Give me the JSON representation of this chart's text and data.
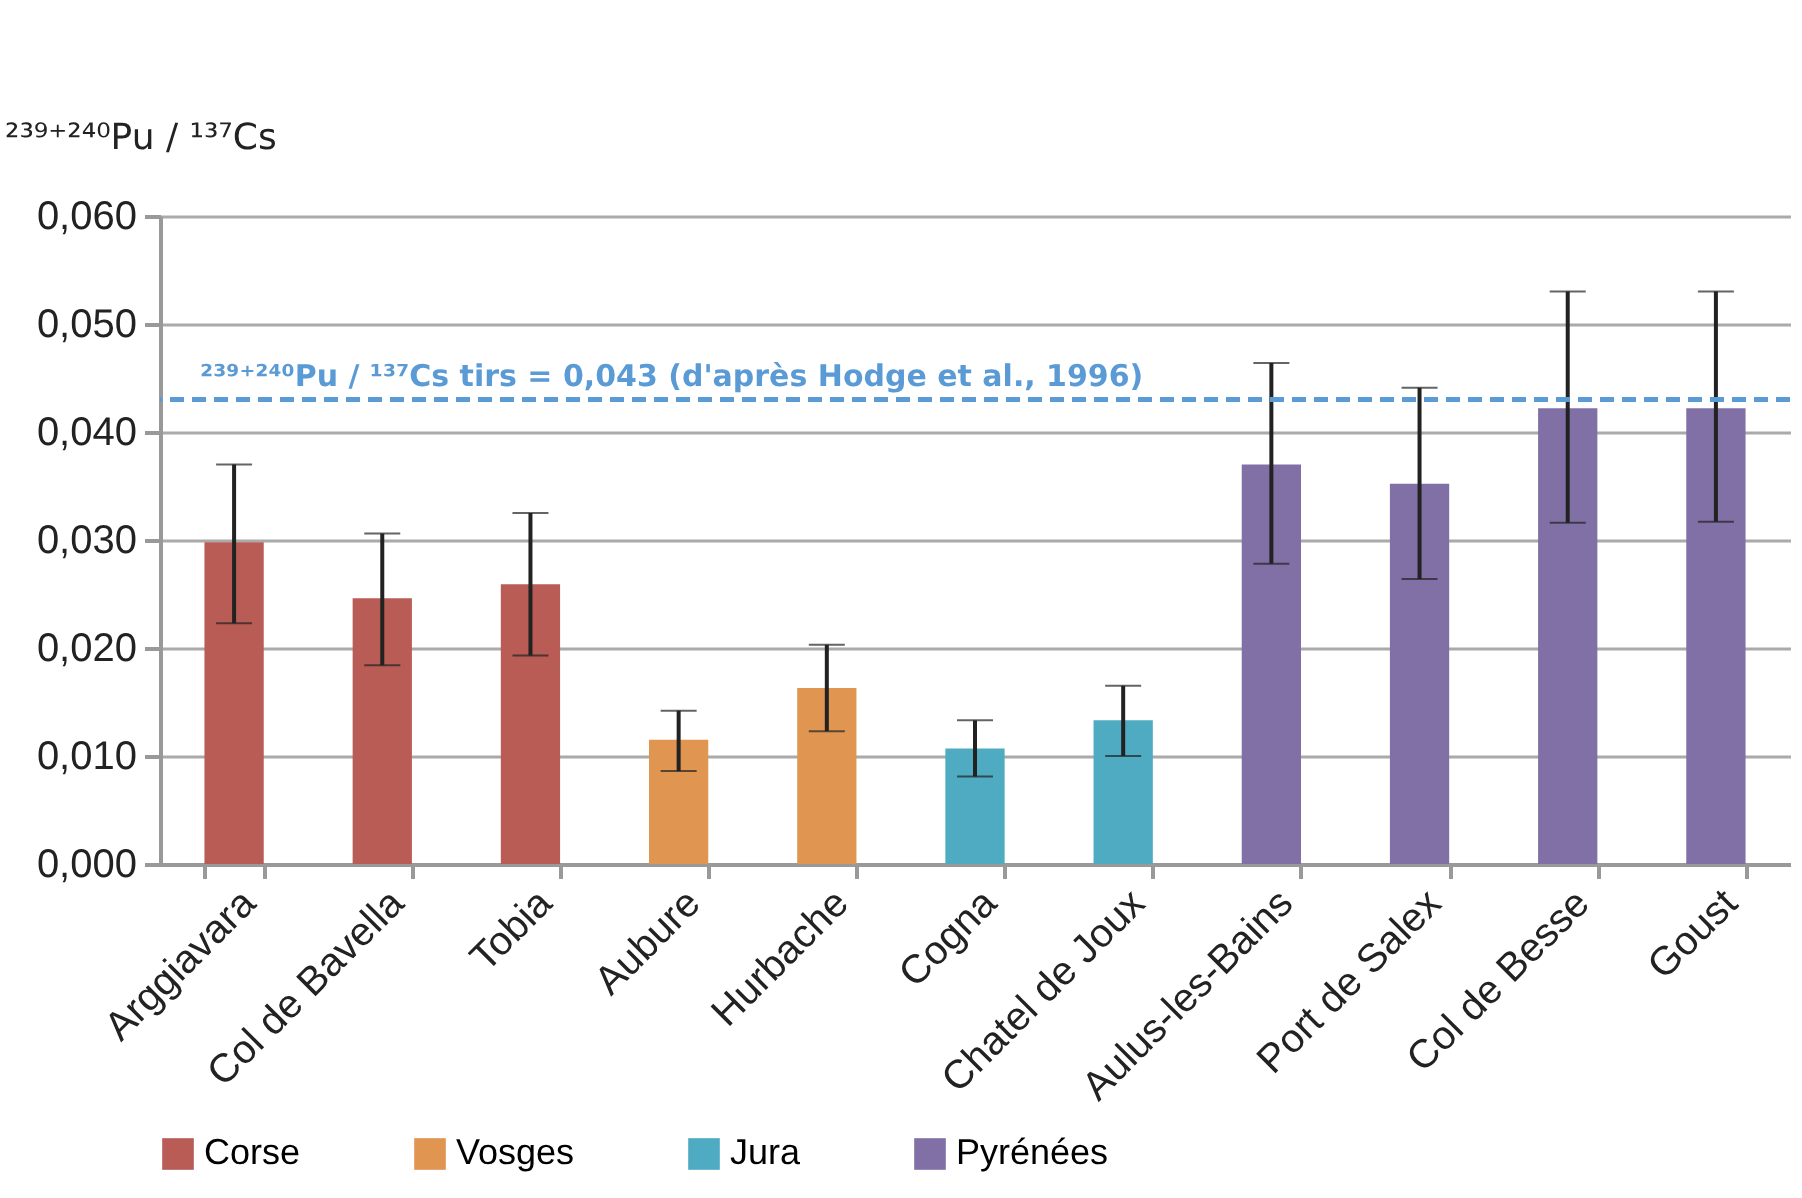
{
  "chart_data": {
    "type": "bar",
    "ylabel": "²³⁹⁺²⁴⁰Pu / ¹³⁷Cs",
    "categories": [
      "Arggiavara",
      "Col de Bavella",
      "Tobia",
      "Aubure",
      "Hurbache",
      "Cogna",
      "Chatel de Joux",
      "Aulus-les-Bains",
      "Port de Salex",
      "Col de Besse",
      "Goust"
    ],
    "series": [
      {
        "name": "Corse",
        "color": "#b85c55",
        "values": [
          0.0298,
          0.0246,
          0.0259,
          null,
          null,
          null,
          null,
          null,
          null,
          null,
          null
        ],
        "errors": [
          [
            0.0223,
            0.037
          ],
          [
            0.0184,
            0.0306
          ],
          [
            0.0193,
            0.0325
          ],
          null,
          null,
          null,
          null,
          null,
          null,
          null,
          null
        ]
      },
      {
        "name": "Vosges",
        "color": "#e09550",
        "values": [
          null,
          null,
          null,
          0.0115,
          0.0163,
          null,
          null,
          null,
          null,
          null,
          null
        ],
        "errors": [
          null,
          null,
          null,
          [
            0.0086,
            0.0142
          ],
          [
            0.0123,
            0.0203
          ],
          null,
          null,
          null,
          null,
          null,
          null
        ]
      },
      {
        "name": "Jura",
        "color": "#4eabc1",
        "values": [
          null,
          null,
          null,
          null,
          null,
          0.0107,
          0.0133,
          null,
          null,
          null,
          null
        ],
        "errors": [
          null,
          null,
          null,
          null,
          null,
          [
            0.0081,
            0.0133
          ],
          [
            0.01,
            0.0165
          ],
          null,
          null,
          null,
          null
        ]
      },
      {
        "name": "Pyrénées",
        "color": "#8170a6",
        "values": [
          null,
          null,
          null,
          null,
          null,
          null,
          null,
          0.037,
          0.0352,
          0.0422,
          0.0422
        ],
        "errors": [
          null,
          null,
          null,
          null,
          null,
          null,
          null,
          [
            0.0278,
            0.0464
          ],
          [
            0.0264,
            0.0441
          ],
          [
            0.0316,
            0.053
          ],
          [
            0.0317,
            0.053
          ]
        ]
      }
    ],
    "ylim": [
      0,
      0.06
    ],
    "yticks": [
      {
        "value": 0,
        "label": "0,000"
      },
      {
        "value": 0.01,
        "label": "0,010"
      },
      {
        "value": 0.02,
        "label": "0,020"
      },
      {
        "value": 0.03,
        "label": "0,030"
      },
      {
        "value": 0.04,
        "label": "0,040"
      },
      {
        "value": 0.05,
        "label": "0,050"
      },
      {
        "value": 0.06,
        "label": "0,060"
      }
    ],
    "ref_lines": [
      {
        "axis": "y",
        "value": 0.043,
        "label": "²³⁹⁺²⁴⁰Pu / ¹³⁷Cs tirs = 0,043 (d'après Hodge et al., 1996)",
        "color": "#5b9bd5",
        "line_style": "dashed"
      }
    ],
    "grid": "y",
    "legend": "bottom"
  }
}
